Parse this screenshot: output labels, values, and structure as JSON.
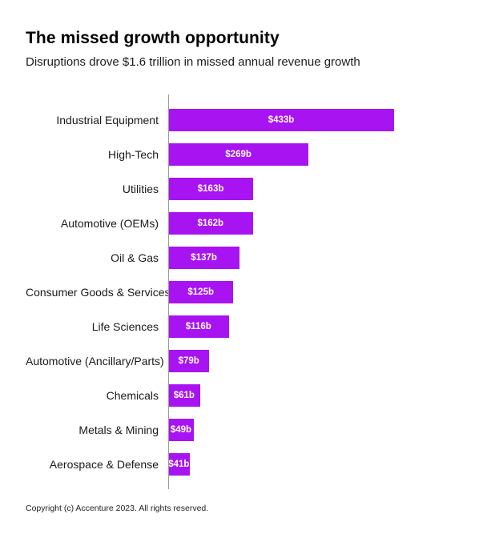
{
  "header": {
    "title": "The missed growth opportunity",
    "subtitle": "Disruptions drove $1.6 trillion in missed annual revenue growth"
  },
  "chart_data": {
    "type": "bar",
    "orientation": "horizontal",
    "title": "The missed growth opportunity",
    "subtitle": "Disruptions drove $1.6 trillion in missed annual revenue growth",
    "categories": [
      "Industrial Equipment",
      "High-Tech",
      "Utilities",
      "Automotive (OEMs)",
      "Oil & Gas",
      "Consumer Goods & Services",
      "Life Sciences",
      "Automotive (Ancillary/Parts)",
      "Chemicals",
      "Metals & Mining",
      "Aerospace & Defense"
    ],
    "values": [
      433,
      269,
      163,
      162,
      137,
      125,
      116,
      79,
      61,
      49,
      41
    ],
    "value_labels": [
      "$433b",
      "$269b",
      "$163b",
      "$162b",
      "$137b",
      "$125b",
      "$116b",
      "$79b",
      "$61b",
      "$49b",
      "$41b"
    ],
    "unit": "billions USD",
    "xlim": [
      0,
      433
    ],
    "grid": false,
    "legend": false,
    "bar_color": "#A813F2",
    "value_label_color": "#FFFFFF",
    "axis_line_color": "#9A9A9A"
  },
  "footer": {
    "copyright": "Copyright (c) Accenture 2023. All rights reserved."
  }
}
